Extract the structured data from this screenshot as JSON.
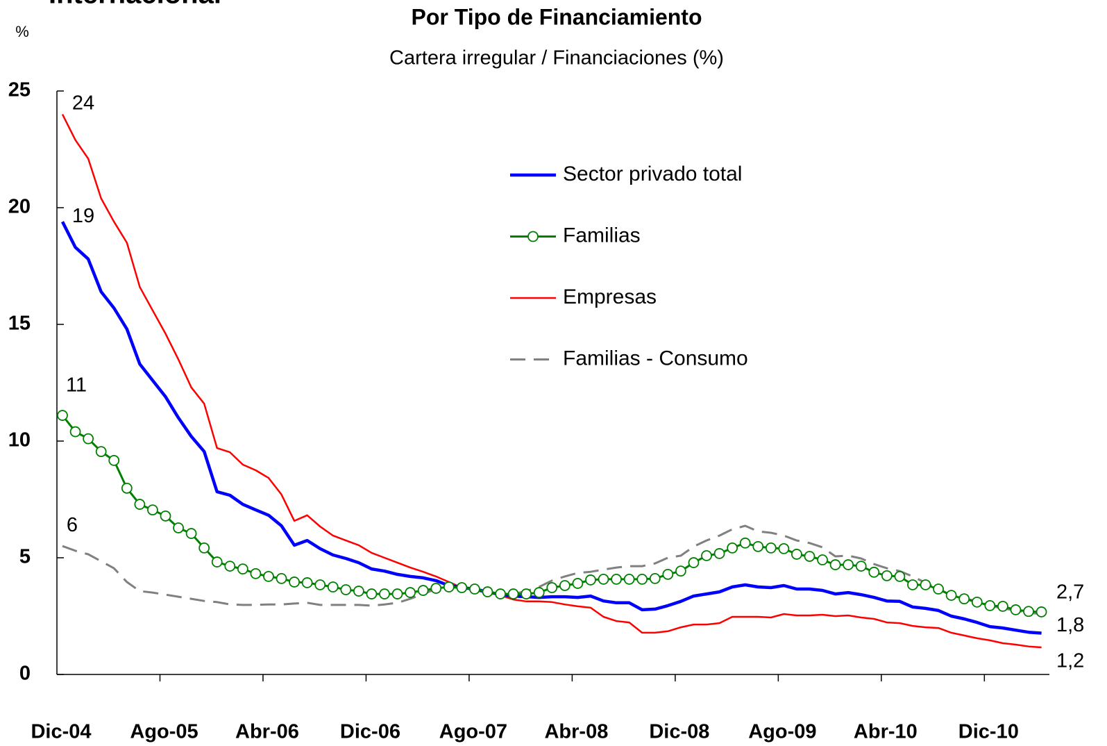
{
  "chart_data": {
    "type": "line",
    "supertitle": "Internacional",
    "title": "Por Tipo de Financiamiento",
    "subtitle": "Cartera irregular / Financiaciones (%)",
    "y_label": "%",
    "categories": [
      "Dic-04",
      null,
      null,
      null,
      null,
      null,
      null,
      null,
      "Ago-05",
      null,
      null,
      null,
      null,
      null,
      null,
      null,
      "Abr-06",
      null,
      null,
      null,
      null,
      null,
      null,
      null,
      "Dic-06",
      null,
      null,
      null,
      null,
      null,
      null,
      null,
      "Ago-07",
      null,
      null,
      null,
      null,
      null,
      null,
      null,
      "Abr-08",
      null,
      null,
      null,
      null,
      null,
      null,
      null,
      "Dic-08",
      null,
      null,
      null,
      null,
      null,
      null,
      null,
      "Ago-09",
      null,
      null,
      null,
      null,
      null,
      null,
      null,
      "Abr-10",
      null,
      null,
      null,
      null,
      null,
      null,
      null,
      "Dic-10",
      null,
      null,
      null,
      null
    ],
    "ylim": [
      0,
      25
    ],
    "yticks": [
      0,
      5,
      10,
      15,
      20,
      25
    ],
    "legend": "upper-right",
    "series": [
      {
        "name": "Sector privado total",
        "color": "#0000ff",
        "linestyle": "solid",
        "marker": null,
        "values": [
          19.4,
          18.3,
          17.8,
          16.4,
          15.7,
          14.8,
          13.3,
          12.6,
          11.9,
          11.0,
          10.2,
          9.55,
          7.83,
          7.68,
          7.29,
          7.05,
          6.82,
          6.37,
          5.54,
          5.74,
          5.39,
          5.12,
          4.97,
          4.79,
          4.52,
          4.43,
          4.29,
          4.2,
          4.14,
          4.02,
          3.81,
          3.72,
          3.66,
          3.54,
          3.42,
          3.36,
          3.33,
          3.3,
          3.33,
          3.33,
          3.3,
          3.36,
          3.15,
          3.07,
          3.07,
          2.77,
          2.8,
          2.95,
          3.13,
          3.36,
          3.45,
          3.54,
          3.75,
          3.84,
          3.75,
          3.72,
          3.81,
          3.66,
          3.66,
          3.6,
          3.45,
          3.51,
          3.42,
          3.3,
          3.15,
          3.13,
          2.89,
          2.83,
          2.74,
          2.5,
          2.38,
          2.23,
          2.05,
          1.99,
          1.9,
          1.81,
          1.77
        ],
        "value_labels": [
          "19",
          null,
          null,
          null,
          null,
          null,
          null,
          null,
          null,
          null,
          null,
          null,
          null,
          null,
          null,
          null,
          null,
          null,
          null,
          null,
          null,
          null,
          null,
          null,
          null,
          null,
          null,
          null,
          null,
          null,
          null,
          null,
          null,
          null,
          null,
          null,
          null,
          null,
          null,
          null,
          null,
          null,
          null,
          null,
          null,
          null,
          null,
          null,
          null,
          null,
          null,
          null,
          null,
          null,
          null,
          null,
          null,
          null,
          null,
          null,
          null,
          null,
          null,
          null,
          null,
          null,
          null,
          null,
          null,
          null,
          null,
          null,
          null,
          null,
          null,
          null,
          "1,8"
        ]
      },
      {
        "name": "Familias",
        "color": "#008000",
        "linestyle": "solid",
        "marker": "circle",
        "values": [
          11.1,
          10.4,
          10.1,
          9.55,
          9.17,
          7.98,
          7.29,
          7.05,
          6.79,
          6.28,
          6.04,
          5.42,
          4.82,
          4.64,
          4.52,
          4.32,
          4.2,
          4.11,
          3.96,
          3.93,
          3.84,
          3.75,
          3.63,
          3.57,
          3.45,
          3.45,
          3.45,
          3.51,
          3.6,
          3.69,
          3.75,
          3.72,
          3.66,
          3.54,
          3.45,
          3.45,
          3.45,
          3.51,
          3.72,
          3.81,
          3.9,
          4.05,
          4.08,
          4.08,
          4.08,
          4.08,
          4.11,
          4.29,
          4.43,
          4.79,
          5.09,
          5.18,
          5.42,
          5.63,
          5.48,
          5.42,
          5.39,
          5.15,
          5.06,
          4.91,
          4.7,
          4.7,
          4.64,
          4.38,
          4.23,
          4.2,
          3.84,
          3.84,
          3.66,
          3.39,
          3.24,
          3.1,
          2.95,
          2.92,
          2.77,
          2.7,
          2.68
        ],
        "value_labels": [
          "11",
          null,
          null,
          null,
          null,
          null,
          null,
          null,
          null,
          null,
          null,
          null,
          null,
          null,
          null,
          null,
          null,
          null,
          null,
          null,
          null,
          null,
          null,
          null,
          null,
          null,
          null,
          null,
          null,
          null,
          null,
          null,
          null,
          null,
          null,
          null,
          null,
          null,
          null,
          null,
          null,
          null,
          null,
          null,
          null,
          null,
          null,
          null,
          null,
          null,
          null,
          null,
          null,
          null,
          null,
          null,
          null,
          null,
          null,
          null,
          null,
          null,
          null,
          null,
          null,
          null,
          null,
          null,
          null,
          null,
          null,
          null,
          null,
          null,
          null,
          null,
          "2,7"
        ]
      },
      {
        "name": "Empresas",
        "color": "#ff0000",
        "linestyle": "solid",
        "marker": null,
        "values": [
          24.0,
          22.9,
          22.1,
          20.4,
          19.4,
          18.5,
          16.6,
          15.6,
          14.6,
          13.5,
          12.3,
          11.6,
          9.7,
          9.52,
          8.99,
          8.75,
          8.42,
          7.71,
          6.58,
          6.82,
          6.34,
          5.95,
          5.74,
          5.54,
          5.21,
          5.0,
          4.79,
          4.58,
          4.4,
          4.2,
          3.96,
          3.72,
          3.63,
          3.54,
          3.39,
          3.21,
          3.13,
          3.13,
          3.1,
          3.0,
          2.92,
          2.86,
          2.47,
          2.29,
          2.23,
          1.79,
          1.79,
          1.85,
          2.02,
          2.14,
          2.14,
          2.2,
          2.47,
          2.47,
          2.47,
          2.44,
          2.59,
          2.53,
          2.53,
          2.56,
          2.5,
          2.53,
          2.44,
          2.38,
          2.23,
          2.2,
          2.08,
          2.02,
          1.99,
          1.79,
          1.67,
          1.55,
          1.46,
          1.34,
          1.28,
          1.2,
          1.16
        ],
        "value_labels": [
          "24",
          null,
          null,
          null,
          null,
          null,
          null,
          null,
          null,
          null,
          null,
          null,
          null,
          null,
          null,
          null,
          null,
          null,
          null,
          null,
          null,
          null,
          null,
          null,
          null,
          null,
          null,
          null,
          null,
          null,
          null,
          null,
          null,
          null,
          null,
          null,
          null,
          null,
          null,
          null,
          null,
          null,
          null,
          null,
          null,
          null,
          null,
          null,
          null,
          null,
          null,
          null,
          null,
          null,
          null,
          null,
          null,
          null,
          null,
          null,
          null,
          null,
          null,
          null,
          null,
          null,
          null,
          null,
          null,
          null,
          null,
          null,
          null,
          null,
          null,
          null,
          "1,2"
        ]
      },
      {
        "name": "Familias - Consumo",
        "color": "#808080",
        "linestyle": "dashed",
        "marker": null,
        "values": [
          5.5,
          5.3,
          5.15,
          4.85,
          4.55,
          3.96,
          3.57,
          3.51,
          3.42,
          3.33,
          3.24,
          3.15,
          3.1,
          3.0,
          2.98,
          2.98,
          3.0,
          3.0,
          3.04,
          3.07,
          2.98,
          2.98,
          2.98,
          2.98,
          2.95,
          3.0,
          3.07,
          3.24,
          3.45,
          3.66,
          3.75,
          3.69,
          3.6,
          3.51,
          3.45,
          3.45,
          3.57,
          3.75,
          4.02,
          4.2,
          4.35,
          4.4,
          4.49,
          4.58,
          4.64,
          4.64,
          4.76,
          5.0,
          5.09,
          5.48,
          5.74,
          5.95,
          6.22,
          6.37,
          6.13,
          6.07,
          5.95,
          5.74,
          5.63,
          5.45,
          5.06,
          5.09,
          4.97,
          4.73,
          4.55,
          4.43,
          4.2,
          3.93,
          3.66,
          3.39,
          3.27,
          3.13,
          2.95,
          2.83,
          2.74,
          2.65,
          2.59
        ],
        "value_labels": [
          "6",
          null,
          null,
          null,
          null,
          null,
          null,
          null,
          null,
          null,
          null,
          null,
          null,
          null,
          null,
          null,
          null,
          null,
          null,
          null,
          null,
          null,
          null,
          null,
          null,
          null,
          null,
          null,
          null,
          null,
          null,
          null,
          null,
          null,
          null,
          null,
          null,
          null,
          null,
          null,
          null,
          null,
          null,
          null,
          null,
          null,
          null,
          null,
          null,
          null,
          null,
          null,
          null,
          null,
          null,
          null,
          null,
          null,
          null,
          null,
          null,
          null,
          null,
          null,
          null,
          null,
          null,
          null,
          null,
          null,
          null,
          null,
          null,
          null,
          null,
          null,
          null
        ]
      }
    ]
  }
}
